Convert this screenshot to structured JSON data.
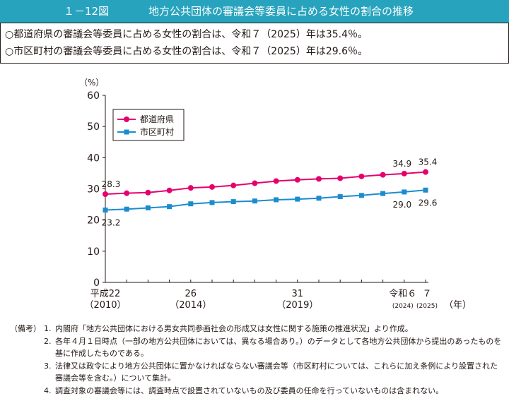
{
  "header": {
    "figure_number": "１－12図",
    "title": "地方公共団体の審議会等委員に占める女性の割合の推移"
  },
  "summary": [
    "○都道府県の審議会等委員に占める女性の割合は、令和７（2025）年は35.4％。",
    "○市区町村の審議会等委員に占める女性の割合は、令和７（2025）年は29.6％。"
  ],
  "chart_data": {
    "type": "line",
    "x": [
      2010,
      2011,
      2012,
      2013,
      2014,
      2015,
      2016,
      2017,
      2018,
      2019,
      2020,
      2021,
      2022,
      2023,
      2024,
      2025
    ],
    "series": [
      {
        "name": "都道府県",
        "color": "#e5006e",
        "marker": "circle",
        "values": [
          28.3,
          28.6,
          28.8,
          29.5,
          30.3,
          30.6,
          31.1,
          31.8,
          32.5,
          32.9,
          33.2,
          33.4,
          34.0,
          34.5,
          34.9,
          35.4
        ]
      },
      {
        "name": "市区町村",
        "color": "#1b8ccf",
        "marker": "square",
        "values": [
          23.2,
          23.5,
          23.9,
          24.3,
          25.2,
          25.6,
          25.9,
          26.1,
          26.5,
          26.7,
          27.0,
          27.5,
          27.9,
          28.5,
          29.0,
          29.6
        ]
      }
    ],
    "data_labels": [
      {
        "series": 0,
        "index": 0,
        "text": "28.3"
      },
      {
        "series": 0,
        "index": 14,
        "text": "34.9"
      },
      {
        "series": 0,
        "index": 15,
        "text": "35.4"
      },
      {
        "series": 1,
        "index": 0,
        "text": "23.2"
      },
      {
        "series": 1,
        "index": 14,
        "text": "29.0"
      },
      {
        "series": 1,
        "index": 15,
        "text": "29.6"
      }
    ],
    "ylabel": "（%）",
    "ylim": [
      0,
      60
    ],
    "yticks": [
      0,
      10,
      20,
      30,
      40,
      50,
      60
    ],
    "xlabel": "（年）",
    "x_ticks": [
      {
        "x": 2010,
        "label": "平成22",
        "sub": "（2010）"
      },
      {
        "x": 2014,
        "label": "26",
        "sub": "（2014）"
      },
      {
        "x": 2019,
        "label": "31",
        "sub": "（2019）"
      },
      {
        "x": 2024,
        "label": "令和６",
        "sub": "(2024)"
      },
      {
        "x": 2025,
        "label": "７",
        "sub": "(2025)"
      }
    ],
    "legend_position": "top-left",
    "grid": false
  },
  "notes": {
    "heading": "（備考）",
    "items": [
      {
        "num": "1.",
        "text": "内閣府「地方公共団体における男女共同参画社会の形成又は女性に関する施策の推進状況」より作成。"
      },
      {
        "num": "2.",
        "text": "各年４月１日時点（一部の地方公共団体においては、異なる場合あり。）のデータとして各地方公共団体から提出のあったものを基に作成したものである。"
      },
      {
        "num": "3.",
        "text": "法律又は政令により地方公共団体に置かなければならない審議会等（市区町村については、これらに加え条例により設置された審議会等を含む。）について集計。"
      },
      {
        "num": "4.",
        "text": "調査対象の審議会等には、調査時点で設置されていないもの及び委員の任命を行っていないものは含まれない。"
      }
    ]
  }
}
